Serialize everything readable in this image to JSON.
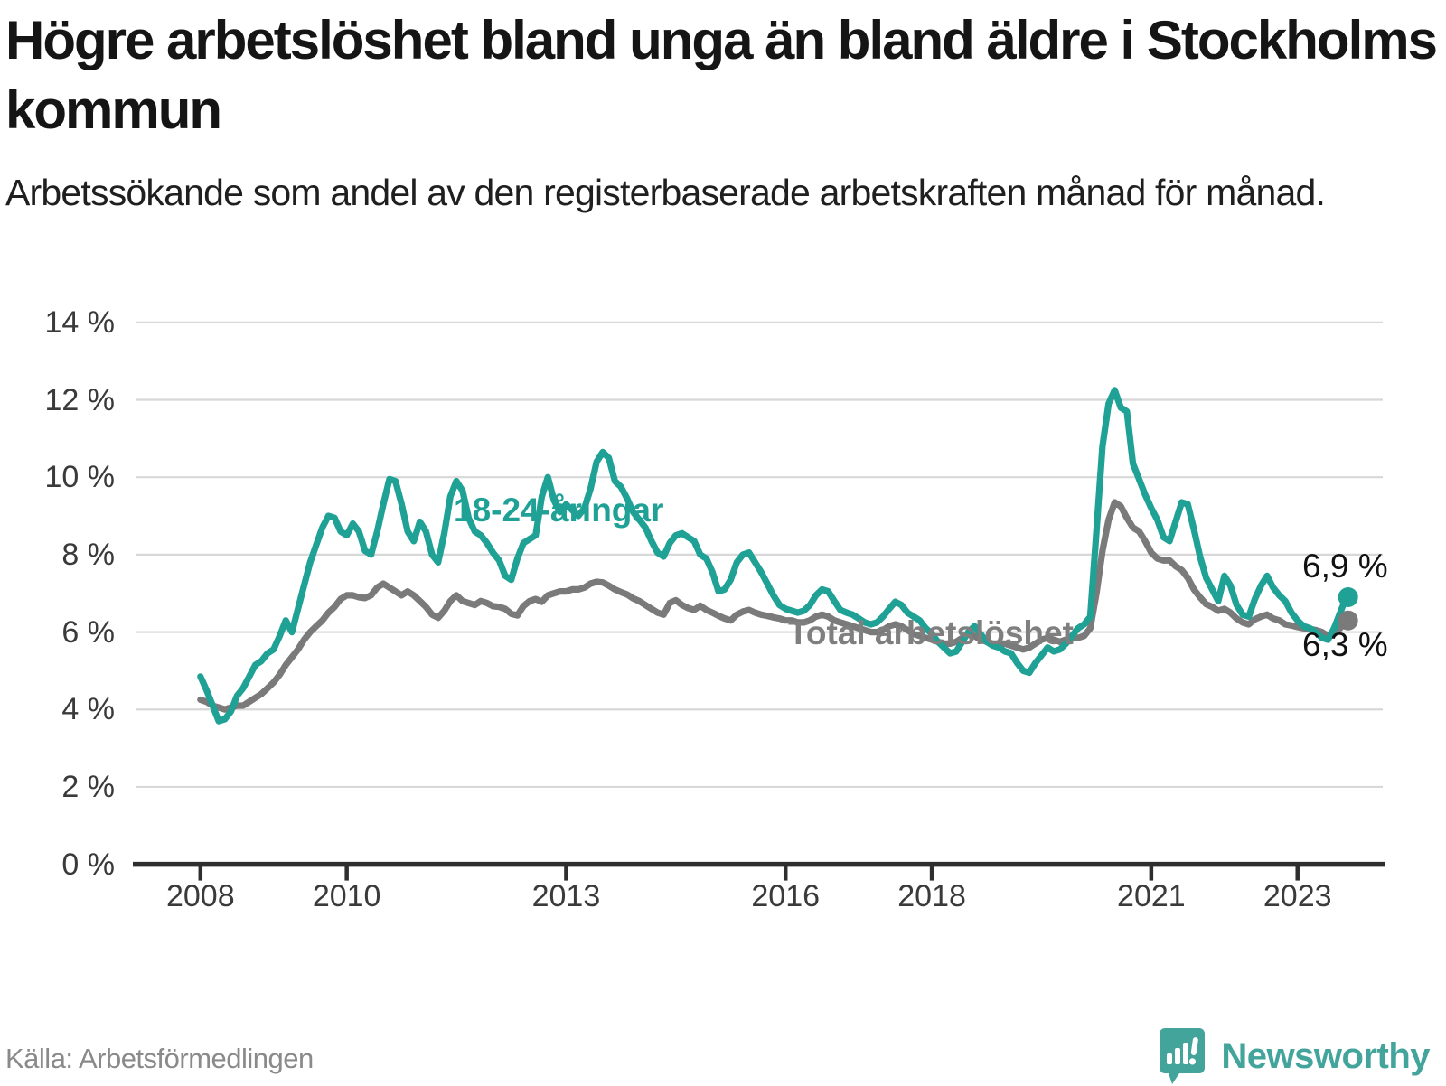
{
  "header": {
    "title": "Högre arbetslöshet bland unga än bland äldre i Stockholms kommun",
    "subtitle": "Arbetssökande som andel av den registerbaserade arbetskraften månad för månad."
  },
  "footer": {
    "source": "Källa: Arbetsförmedlingen",
    "brand_name": "Newsworthy"
  },
  "colors": {
    "young_line": "#1fa195",
    "total_line": "#7a7a7a",
    "total_label": "#7f7f7f",
    "grid": "#d8d8d8",
    "axis": "#2e2e2e",
    "tick_text": "#3a3a3a",
    "brand_teal": "#43a49c",
    "end_label_text": "#111111"
  },
  "chart_data": {
    "type": "line",
    "x_unit": "month",
    "x_start": "2008-01",
    "x_end": "2023-09",
    "ylim": [
      0,
      14
    ],
    "grid": "horizontal",
    "y_tick_labels": [
      "14 %",
      "12 %",
      "10 %",
      "8 %",
      "6 %",
      "4 %",
      "2 %",
      "0 %"
    ],
    "y_tick_values": [
      14,
      12,
      10,
      8,
      6,
      4,
      2,
      0
    ],
    "x_tick_labels": [
      "2008",
      "2010",
      "2013",
      "2016",
      "2018",
      "2021",
      "2023"
    ],
    "x_tick_month_index": [
      0,
      24,
      60,
      96,
      120,
      156,
      180
    ],
    "series": [
      {
        "name": "Total arbetslöshet",
        "color": "#7a7a7a",
        "end_label": "6,3 %",
        "end_value": 6.3,
        "values": [
          4.25,
          4.2,
          4.1,
          4.05,
          4.0,
          4.05,
          4.1,
          4.1,
          4.2,
          4.3,
          4.4,
          4.55,
          4.7,
          4.9,
          5.15,
          5.35,
          5.55,
          5.8,
          6.0,
          6.15,
          6.3,
          6.5,
          6.65,
          6.85,
          6.95,
          6.95,
          6.9,
          6.88,
          6.95,
          7.15,
          7.25,
          7.15,
          7.05,
          6.95,
          7.05,
          6.95,
          6.8,
          6.65,
          6.45,
          6.37,
          6.55,
          6.8,
          6.95,
          6.8,
          6.75,
          6.7,
          6.8,
          6.75,
          6.67,
          6.65,
          6.6,
          6.47,
          6.43,
          6.67,
          6.8,
          6.85,
          6.78,
          6.95,
          7.0,
          7.05,
          7.05,
          7.1,
          7.1,
          7.15,
          7.25,
          7.3,
          7.28,
          7.2,
          7.1,
          7.03,
          6.97,
          6.87,
          6.8,
          6.7,
          6.6,
          6.5,
          6.45,
          6.75,
          6.82,
          6.7,
          6.62,
          6.57,
          6.68,
          6.57,
          6.5,
          6.42,
          6.35,
          6.3,
          6.45,
          6.53,
          6.57,
          6.5,
          6.45,
          6.42,
          6.38,
          6.35,
          6.3,
          6.3,
          6.25,
          6.25,
          6.3,
          6.4,
          6.45,
          6.4,
          6.3,
          6.25,
          6.2,
          6.15,
          6.1,
          6.05,
          6.0,
          6.0,
          6.05,
          6.15,
          6.2,
          6.15,
          6.05,
          5.95,
          5.9,
          5.85,
          5.8,
          5.75,
          5.7,
          5.7,
          5.75,
          5.85,
          5.95,
          5.9,
          5.8,
          5.75,
          5.7,
          5.7,
          5.7,
          5.65,
          5.6,
          5.55,
          5.6,
          5.7,
          5.8,
          5.85,
          5.8,
          5.75,
          5.8,
          5.85,
          5.85,
          5.9,
          6.1,
          7.0,
          8.1,
          8.9,
          9.35,
          9.25,
          8.95,
          8.7,
          8.6,
          8.35,
          8.05,
          7.9,
          7.85,
          7.85,
          7.7,
          7.6,
          7.4,
          7.1,
          6.9,
          6.72,
          6.65,
          6.55,
          6.6,
          6.5,
          6.35,
          6.25,
          6.2,
          6.33,
          6.4,
          6.45,
          6.35,
          6.3,
          6.2,
          6.17,
          6.13,
          6.1,
          6.08,
          6.05,
          6.0,
          5.9,
          5.95,
          6.1,
          6.3
        ]
      },
      {
        "name": "18-24-åringar",
        "color": "#1fa195",
        "end_label": "6,9 %",
        "end_value": 6.9,
        "values": [
          4.85,
          4.5,
          4.1,
          3.7,
          3.75,
          3.95,
          4.35,
          4.55,
          4.85,
          5.15,
          5.25,
          5.45,
          5.55,
          5.9,
          6.3,
          6.0,
          6.6,
          7.2,
          7.8,
          8.25,
          8.7,
          9.0,
          8.95,
          8.6,
          8.5,
          8.8,
          8.6,
          8.1,
          8.0,
          8.6,
          9.3,
          9.95,
          9.9,
          9.3,
          8.6,
          8.35,
          8.85,
          8.6,
          8.0,
          7.8,
          8.55,
          9.5,
          9.9,
          9.65,
          8.95,
          8.6,
          8.5,
          8.3,
          8.05,
          7.85,
          7.45,
          7.35,
          7.9,
          8.3,
          8.4,
          8.5,
          9.5,
          10.0,
          9.4,
          9.1,
          9.3,
          9.15,
          9.0,
          9.2,
          9.7,
          10.4,
          10.65,
          10.5,
          9.9,
          9.75,
          9.45,
          9.1,
          8.9,
          8.7,
          8.35,
          8.05,
          7.95,
          8.3,
          8.5,
          8.55,
          8.45,
          8.35,
          8.0,
          7.9,
          7.55,
          7.05,
          7.1,
          7.35,
          7.8,
          8.0,
          8.05,
          7.8,
          7.55,
          7.25,
          6.95,
          6.7,
          6.6,
          6.55,
          6.5,
          6.55,
          6.7,
          6.95,
          7.1,
          7.05,
          6.8,
          6.57,
          6.5,
          6.45,
          6.35,
          6.25,
          6.2,
          6.25,
          6.4,
          6.6,
          6.78,
          6.7,
          6.5,
          6.4,
          6.3,
          6.1,
          5.95,
          5.75,
          5.6,
          5.45,
          5.5,
          5.75,
          6.0,
          6.15,
          5.95,
          5.75,
          5.65,
          5.6,
          5.5,
          5.45,
          5.2,
          5.0,
          4.95,
          5.2,
          5.4,
          5.6,
          5.5,
          5.55,
          5.7,
          5.9,
          6.1,
          6.2,
          6.4,
          8.6,
          10.8,
          11.9,
          12.25,
          11.8,
          11.7,
          10.35,
          9.95,
          9.55,
          9.2,
          8.9,
          8.45,
          8.35,
          8.85,
          9.35,
          9.3,
          8.65,
          7.95,
          7.4,
          7.1,
          6.8,
          7.45,
          7.2,
          6.7,
          6.45,
          6.4,
          6.85,
          7.2,
          7.45,
          7.15,
          6.95,
          6.8,
          6.5,
          6.3,
          6.15,
          6.1,
          6.0,
          5.85,
          5.8,
          6.1,
          6.5,
          6.9
        ]
      }
    ]
  }
}
